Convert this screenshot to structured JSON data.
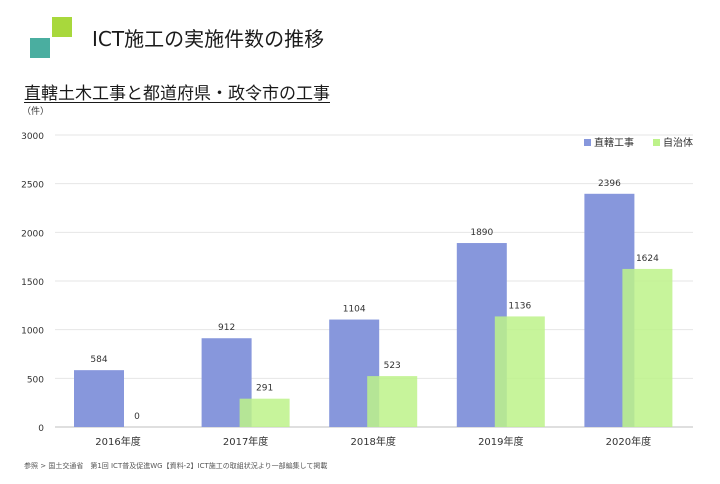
{
  "header": {
    "title": "ICT施工の実施件数の推移",
    "subtitle": "直轄土木工事と都道府県・政令市の工事"
  },
  "footnote": "参照 > 国土交通省　第1回 ICT普及促進WG【資料-2】ICT施工の取組状況より一部編集して掲載",
  "chart_data": {
    "type": "bar",
    "title": "",
    "unit_label": "（件）",
    "categories": [
      "2016年度",
      "2017年度",
      "2018年度",
      "2019年度",
      "2020年度"
    ],
    "series": [
      {
        "name": "直轄工事",
        "color": "#8797dc",
        "values": [
          584,
          912,
          1104,
          1890,
          2396
        ]
      },
      {
        "name": "自治体",
        "color": "#bdf28a",
        "values": [
          0,
          291,
          523,
          1136,
          1624
        ]
      }
    ],
    "ylim": [
      0,
      3000
    ],
    "yticks": [
      0,
      500,
      1000,
      1500,
      2000,
      2500,
      3000
    ],
    "grid": true,
    "legend": "top-right",
    "data_labels": true
  }
}
